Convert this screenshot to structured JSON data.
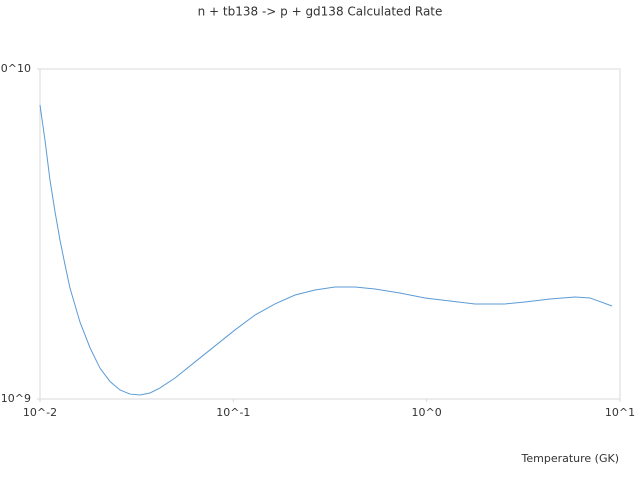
{
  "chart_data": {
    "type": "line",
    "title": "n + tb138 -> p + gd138 Calculated Rate",
    "x_label": "Temperature (GK)",
    "x": [
      0.01,
      0.01061,
      0.01126,
      0.01196,
      0.01269,
      0.01347,
      0.01429,
      0.0161,
      0.01814,
      0.02043,
      0.02302,
      0.02593,
      0.02921,
      0.03291,
      0.03707,
      0.04176,
      0.04993,
      0.06334,
      0.08037,
      0.102,
      0.1294,
      0.1642,
      0.2084,
      0.2645,
      0.3356,
      0.4259,
      0.5404,
      0.7277,
      0.98,
      1.32,
      1.778,
      2.542,
      3.226,
      4.344,
      5.851,
      6.996,
      9.09
    ],
    "values": [
      7780000000,
      6090000000,
      4610000000,
      3690000000,
      3030000000,
      2550000000,
      2170000000,
      1710000000,
      1430000000,
      1240000000,
      1130000000,
      1065000000,
      1035000000,
      1028000000,
      1043000000,
      1080000000,
      1158000000,
      1295000000,
      1448000000,
      1619000000,
      1797000000,
      1941000000,
      2066000000,
      2140000000,
      2185000000,
      2185000000,
      2154000000,
      2095000000,
      2024000000,
      1982000000,
      1941000000,
      1941000000,
      1968000000,
      2010000000,
      2038000000,
      2024000000,
      1913000000
    ],
    "color": "#5b9bd5",
    "xlog": true,
    "ylog": true,
    "grid": false,
    "xlim": [
      0.01,
      10
    ],
    "ylim": [
      1000000000,
      10000000000
    ],
    "xticks": [
      {
        "value": 0.01,
        "label": "10^-2"
      },
      {
        "value": 0.1,
        "label": "10^-1"
      },
      {
        "value": 1,
        "label": "10^0"
      },
      {
        "value": 10,
        "label": "10^1"
      }
    ],
    "yticks": [
      {
        "value": 1000000000,
        "label": "10^9"
      },
      {
        "value": 10000000000,
        "label": "10^10"
      }
    ]
  }
}
